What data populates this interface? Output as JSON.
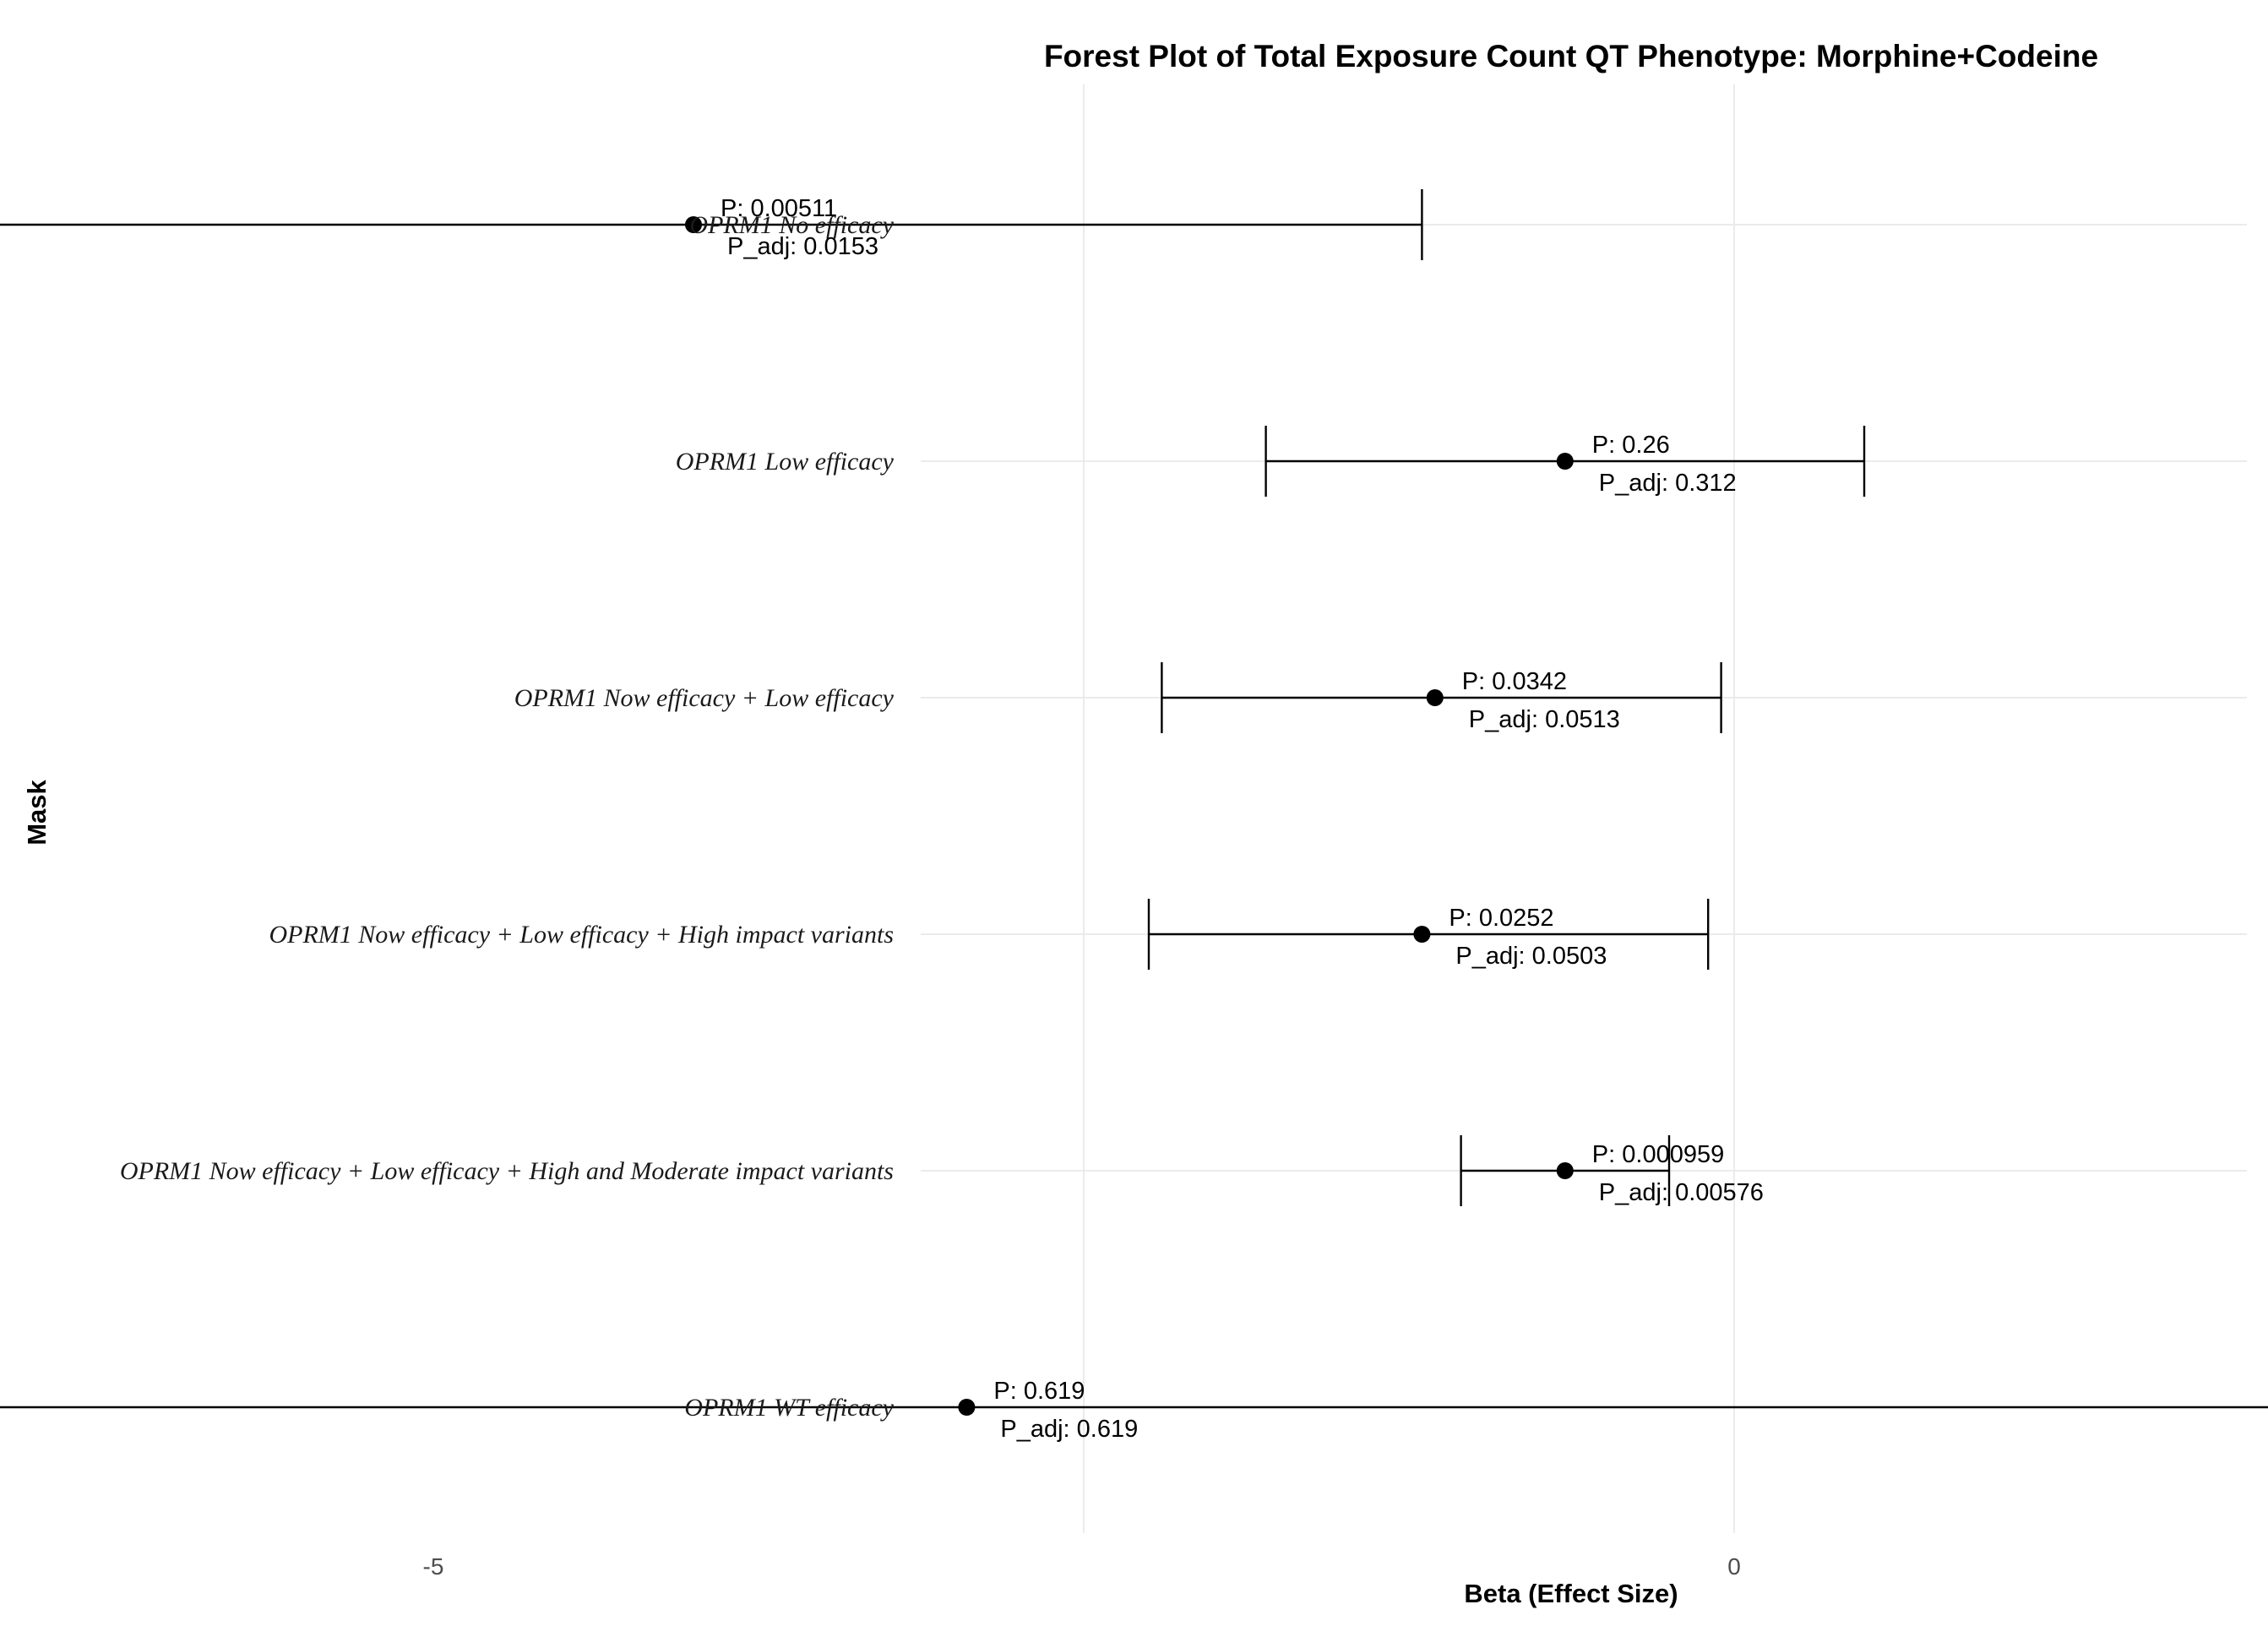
{
  "chart_data": {
    "type": "forest",
    "title": "Forest Plot of Total Exposure Count QT Phenotype: Morphine+Codeine",
    "xlabel": "Beta (Effect Size)",
    "ylabel": "Mask",
    "xlim": [
      -15.3,
      9.6
    ],
    "xticks": [
      -15,
      -10,
      -5,
      0,
      5
    ],
    "xtick_labels": [
      "-15",
      "-10",
      "-5",
      "0",
      "5"
    ],
    "grid": true,
    "rows": [
      {
        "label": "OPRM1 No efficacy",
        "beta": -4.0,
        "ci_low": -6.8,
        "ci_high": -1.2,
        "p_label": "P: 0.00511",
        "padj_label": "P_adj: 0.0153"
      },
      {
        "label": "OPRM1 Low efficacy",
        "beta": -0.65,
        "ci_low": -1.8,
        "ci_high": 0.5,
        "p_label": "P: 0.26",
        "padj_label": "P_adj: 0.312"
      },
      {
        "label": "OPRM1 Now efficacy + Low efficacy",
        "beta": -1.15,
        "ci_low": -2.2,
        "ci_high": -0.05,
        "p_label": "P: 0.0342",
        "padj_label": "P_adj: 0.0513"
      },
      {
        "label": "OPRM1 Now efficacy + Low efficacy + High impact variants",
        "beta": -1.2,
        "ci_low": -2.25,
        "ci_high": -0.1,
        "p_label": "P: 0.0252",
        "padj_label": "P_adj: 0.0503"
      },
      {
        "label": "OPRM1 Now efficacy + Low efficacy + High and Moderate impact variants",
        "beta": -0.65,
        "ci_low": -1.05,
        "ci_high": -0.25,
        "p_label": "P: 0.000959",
        "padj_label": "P_adj: 0.00576"
      },
      {
        "label": "OPRM1 WT efficacy",
        "beta": -2.95,
        "ci_low": -14.6,
        "ci_high": 8.7,
        "p_label": "P: 0.619",
        "padj_label": "P_adj: 0.619"
      }
    ]
  }
}
